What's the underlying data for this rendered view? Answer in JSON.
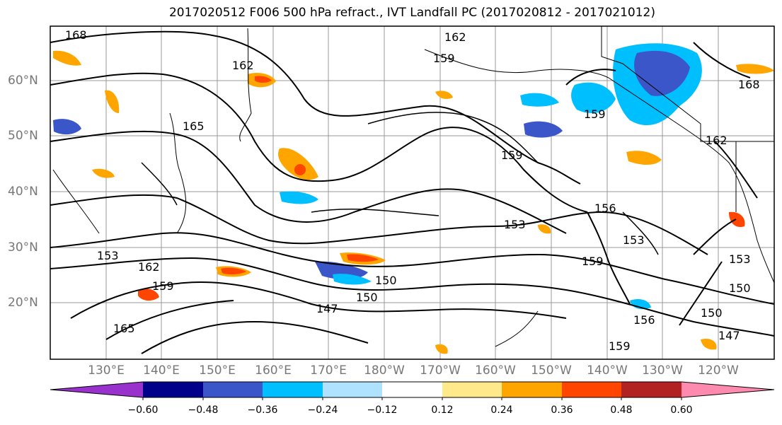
{
  "title": "2017020512 F006 500 hPa refract., IVT Landfall PC (2017020812 - 2017021012)",
  "map": {
    "lat_labels": [
      "60°N",
      "50°N",
      "40°N",
      "30°N",
      "20°N"
    ],
    "lon_labels": [
      "130°E",
      "140°E",
      "150°E",
      "160°E",
      "170°E",
      "180°W",
      "170°W",
      "160°W",
      "150°W",
      "140°W",
      "130°W",
      "120°W"
    ],
    "contour_labels": [
      "168",
      "162",
      "159",
      "162",
      "165",
      "159",
      "168",
      "159",
      "162",
      "153",
      "156",
      "153",
      "159",
      "153",
      "150",
      "153",
      "162",
      "159",
      "150",
      "150",
      "147",
      "147",
      "150",
      "156",
      "159",
      "165"
    ],
    "land_color": "#ffffff",
    "contour_color": "#000000"
  },
  "colorbar": {
    "levels": [
      -0.6,
      -0.48,
      -0.36,
      -0.24,
      -0.12,
      0.12,
      0.24,
      0.36,
      0.48,
      0.6
    ],
    "tick_labels": [
      "−0.60",
      "−0.48",
      "−0.36",
      "−0.24",
      "−0.12",
      "0.12",
      "0.24",
      "0.36",
      "0.48",
      "0.60"
    ],
    "colors": [
      "#9932cc",
      "#00008b",
      "#3b56c9",
      "#00bfff",
      "#aee2ff",
      "#ffffff",
      "#ffe98a",
      "#ffa500",
      "#ff4500",
      "#b22222",
      "#ff8ab0"
    ]
  }
}
